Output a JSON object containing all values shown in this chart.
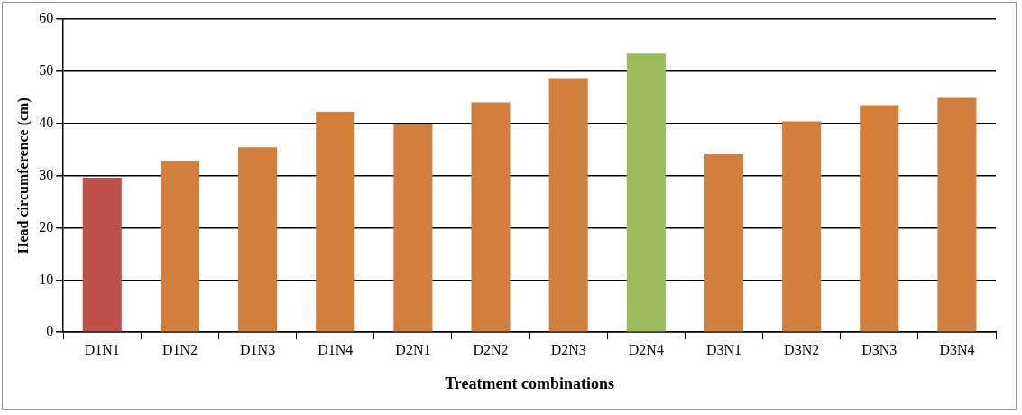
{
  "chart_data": {
    "type": "bar",
    "xlabel": "Treatment combinations",
    "ylabel": "Head circumference (cm)",
    "categories": [
      "D1N1",
      "D1N2",
      "D1N3",
      "D1N4",
      "D2N1",
      "D2N2",
      "D2N3",
      "D2N4",
      "D3N1",
      "D3N2",
      "D3N3",
      "D3N4"
    ],
    "values": [
      29.6,
      32.8,
      35.4,
      42.2,
      39.9,
      44.0,
      48.5,
      53.4,
      34.1,
      40.4,
      43.5,
      44.9
    ],
    "colors": [
      "#c0504d",
      "#d27f3d",
      "#d27f3d",
      "#d27f3d",
      "#d27f3d",
      "#d27f3d",
      "#d27f3d",
      "#9bbb59",
      "#d27f3d",
      "#d27f3d",
      "#d27f3d",
      "#d27f3d"
    ],
    "ylim": [
      0,
      60
    ],
    "yticks": [
      0,
      10,
      20,
      30,
      40,
      50,
      60
    ],
    "grid": "y",
    "legend": false
  }
}
